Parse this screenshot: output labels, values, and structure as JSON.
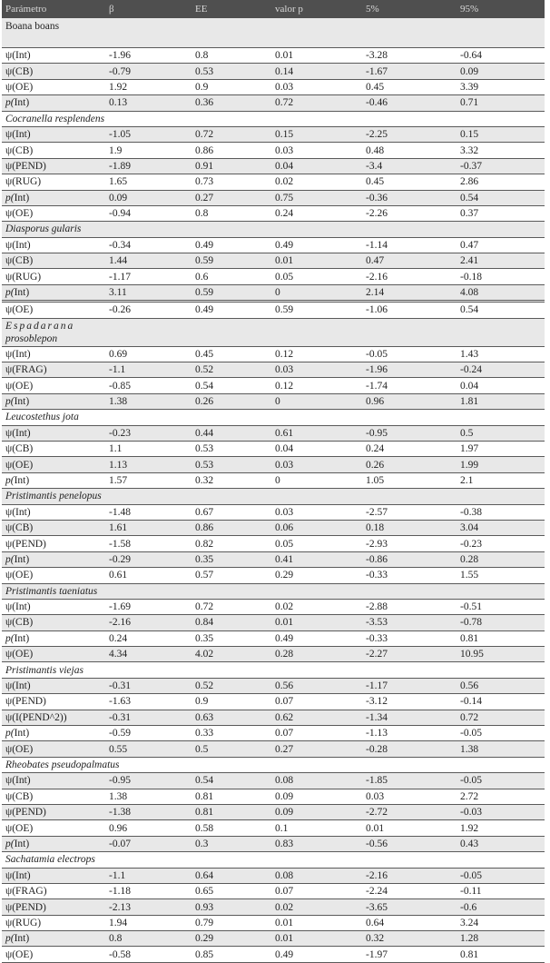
{
  "table": {
    "headers": [
      "Parámetro",
      "β",
      "EE",
      "valor p",
      "5%",
      "95%"
    ],
    "sections": [
      {
        "name": "Boana boans",
        "rows": [
          [
            "ψ(Int)",
            "-1.96",
            "0.8",
            "0.01",
            "-3.28",
            "-0.64"
          ],
          [
            "ψ(CB)",
            "-0.79",
            "0.53",
            "0.14",
            "-1.67",
            "0.09"
          ],
          [
            "ψ(OE)",
            "1.92",
            "0.9",
            "0.03",
            "0.45",
            "3.39"
          ],
          [
            "p(Int)",
            "0.13",
            "0.36",
            "0.72",
            "-0.46",
            "0.71"
          ]
        ]
      },
      {
        "name": "Cocranella resplendens",
        "rows": [
          [
            "ψ(Int)",
            "-1.05",
            "0.72",
            "0.15",
            "-2.25",
            "0.15"
          ],
          [
            "ψ(CB)",
            "1.9",
            "0.86",
            "0.03",
            "0.48",
            "3.32"
          ],
          [
            "ψ(PEND)",
            "-1.89",
            "0.91",
            "0.04",
            "-3.4",
            "-0.37"
          ],
          [
            "ψ(RUG)",
            "1.65",
            "0.73",
            "0.02",
            "0.45",
            "2.86"
          ],
          [
            "p(Int)",
            "0.09",
            "0.27",
            "0.75",
            "-0.36",
            "0.54"
          ],
          [
            "ψ(OE)",
            "-0.94",
            "0.8",
            "0.24",
            "-2.26",
            "0.37"
          ]
        ]
      },
      {
        "name": "Diasporus gularis",
        "rows": [
          [
            "ψ(Int)",
            "-0.34",
            "0.49",
            "0.49",
            "-1.14",
            "0.47"
          ],
          [
            "ψ(CB)",
            "1.44",
            "0.59",
            "0.01",
            "0.47",
            "2.41"
          ],
          [
            "ψ(RUG)",
            "-1.17",
            "0.6",
            "0.05",
            "-2.16",
            "-0.18"
          ],
          [
            "p(Int)",
            "3.11",
            "0.59",
            "0",
            "2.14",
            "4.08"
          ],
          [
            "ψ(OE)",
            "-0.26",
            "0.49",
            "0.59",
            "-1.06",
            "0.54"
          ]
        ]
      },
      {
        "name": "Espadarana prosoblepon",
        "rows": [
          [
            "ψ(Int)",
            "0.69",
            "0.45",
            "0.12",
            "-0.05",
            "1.43"
          ],
          [
            "ψ(FRAG)",
            "-1.1",
            "0.52",
            "0.03",
            "-1.96",
            "-0.24"
          ],
          [
            "ψ(OE)",
            "-0.85",
            "0.54",
            "0.12",
            "-1.74",
            "0.04"
          ],
          [
            "p(Int)",
            "1.38",
            "0.26",
            "0",
            "0.96",
            "1.81"
          ]
        ]
      },
      {
        "name": "Leucostethus jota",
        "rows": [
          [
            "ψ(Int)",
            "-0.23",
            "0.44",
            "0.61",
            "-0.95",
            "0.5"
          ],
          [
            "ψ(CB)",
            "1.1",
            "0.53",
            "0.04",
            "0.24",
            "1.97"
          ],
          [
            "ψ(OE)",
            "1.13",
            "0.53",
            "0.03",
            "0.26",
            "1.99"
          ],
          [
            "p(Int)",
            "1.57",
            "0.32",
            "0",
            "1.05",
            "2.1"
          ]
        ]
      },
      {
        "name": "Pristimantis penelopus",
        "rows": [
          [
            "ψ(Int)",
            "-1.48",
            "0.67",
            "0.03",
            "-2.57",
            "-0.38"
          ],
          [
            "ψ(CB)",
            "1.61",
            "0.86",
            "0.06",
            "0.18",
            "3.04"
          ],
          [
            "ψ(PEND)",
            "-1.58",
            "0.82",
            "0.05",
            "-2.93",
            "-0.23"
          ],
          [
            "p(Int)",
            "-0.29",
            "0.35",
            "0.41",
            "-0.86",
            "0.28"
          ],
          [
            "ψ(OE)",
            "0.61",
            "0.57",
            "0.29",
            "-0.33",
            "1.55"
          ]
        ]
      },
      {
        "name": "Pristimantis taeniatus",
        "rows": [
          [
            "ψ(Int)",
            "-1.69",
            "0.72",
            "0.02",
            "-2.88",
            "-0.51"
          ],
          [
            "ψ(CB)",
            "-2.16",
            "0.84",
            "0.01",
            "-3.53",
            "-0.78"
          ],
          [
            "p(Int)",
            "0.24",
            "0.35",
            "0.49",
            "-0.33",
            "0.81"
          ],
          [
            "ψ(OE)",
            "4.34",
            "4.02",
            "0.28",
            "-2.27",
            "10.95"
          ]
        ]
      },
      {
        "name": "Pristimantis viejas",
        "rows": [
          [
            "ψ(Int)",
            "-0.31",
            "0.52",
            "0.56",
            "-1.17",
            "0.56"
          ],
          [
            "ψ(PEND)",
            "-1.63",
            "0.9",
            "0.07",
            "-3.12",
            "-0.14"
          ],
          [
            "ψ(I(PEND^2))",
            "-0.31",
            "0.63",
            "0.62",
            "-1.34",
            "0.72"
          ],
          [
            "p(Int)",
            "-0.59",
            "0.33",
            "0.07",
            "-1.13",
            "-0.05"
          ],
          [
            "ψ(OE)",
            "0.55",
            "0.5",
            "0.27",
            "-0.28",
            "1.38"
          ]
        ]
      },
      {
        "name": "Rheobates pseudopalmatus",
        "rows": [
          [
            "ψ(Int)",
            "-0.95",
            "0.54",
            "0.08",
            "-1.85",
            "-0.05"
          ],
          [
            "ψ(CB)",
            "1.38",
            "0.81",
            "0.09",
            "0.03",
            "2.72"
          ],
          [
            "ψ(PEND)",
            "-1.38",
            "0.81",
            "0.09",
            "-2.72",
            "-0.03"
          ],
          [
            "ψ(OE)",
            "0.96",
            "0.58",
            "0.1",
            "0.01",
            "1.92"
          ],
          [
            "p(Int)",
            "-0.07",
            "0.3",
            "0.83",
            "-0.56",
            "0.43"
          ]
        ]
      },
      {
        "name": "Sachatamia electrops",
        "rows": [
          [
            "ψ(Int)",
            "-1.1",
            "0.64",
            "0.08",
            "-2.16",
            "-0.05"
          ],
          [
            "ψ(FRAG)",
            "-1.18",
            "0.65",
            "0.07",
            "-2.24",
            "-0.11"
          ],
          [
            "ψ(PEND)",
            "-2.13",
            "0.93",
            "0.02",
            "-3.65",
            "-0.6"
          ],
          [
            "ψ(RUG)",
            "1.94",
            "0.79",
            "0.01",
            "0.64",
            "3.24"
          ],
          [
            "p(Int)",
            "0.8",
            "0.29",
            "0.01",
            "0.32",
            "1.28"
          ],
          [
            "ψ(OE)",
            "-0.58",
            "0.85",
            "0.49",
            "-1.97",
            "0.81"
          ]
        ]
      }
    ]
  }
}
